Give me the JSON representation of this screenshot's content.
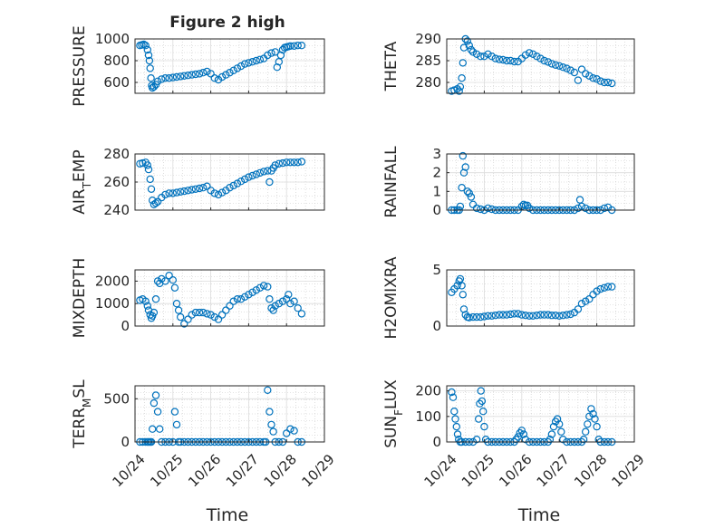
{
  "title": "Figure 2 high",
  "x_tick_labels": [
    "10/24",
    "10/25",
    "10/26",
    "10/27",
    "10/28",
    "10/29"
  ],
  "xlabel": "Time",
  "series_color": "#0072BD",
  "chart_data": [
    {
      "type": "scatter",
      "ylabel": "PRESSURE",
      "xlim": [
        0,
        5
      ],
      "ylim": [
        500,
        1000
      ],
      "yticks": [
        600,
        800,
        1000
      ],
      "x": [
        0.13,
        0.18,
        0.23,
        0.28,
        0.33,
        0.36,
        0.38,
        0.4,
        0.42,
        0.44,
        0.46,
        0.5,
        0.55,
        0.6,
        0.7,
        0.8,
        0.9,
        1.0,
        1.1,
        1.2,
        1.3,
        1.4,
        1.5,
        1.6,
        1.7,
        1.8,
        1.9,
        2.0,
        2.1,
        2.2,
        2.3,
        2.4,
        2.5,
        2.6,
        2.7,
        2.8,
        2.9,
        3.0,
        3.1,
        3.2,
        3.3,
        3.4,
        3.5,
        3.6,
        3.7,
        3.75,
        3.8,
        3.85,
        3.9,
        3.95,
        4.0,
        4.05,
        4.1,
        4.2,
        4.3,
        4.4
      ],
      "y": [
        940,
        945,
        950,
        940,
        900,
        850,
        800,
        730,
        640,
        570,
        550,
        560,
        580,
        610,
        630,
        640,
        640,
        645,
        650,
        655,
        660,
        665,
        670,
        675,
        680,
        690,
        700,
        680,
        640,
        625,
        650,
        670,
        690,
        710,
        730,
        750,
        770,
        780,
        790,
        800,
        810,
        820,
        850,
        870,
        880,
        740,
        790,
        850,
        900,
        920,
        925,
        930,
        935,
        935,
        940,
        940
      ]
    },
    {
      "type": "scatter",
      "ylabel": "THETA",
      "xlim": [
        0,
        5
      ],
      "ylim": [
        277.5,
        290
      ],
      "yticks": [
        280,
        285,
        290
      ],
      "x": [
        0.13,
        0.2,
        0.28,
        0.33,
        0.36,
        0.4,
        0.43,
        0.46,
        0.5,
        0.55,
        0.6,
        0.65,
        0.7,
        0.8,
        0.9,
        1.0,
        1.1,
        1.2,
        1.3,
        1.4,
        1.5,
        1.6,
        1.7,
        1.8,
        1.9,
        2.0,
        2.1,
        2.2,
        2.3,
        2.4,
        2.5,
        2.6,
        2.7,
        2.8,
        2.9,
        3.0,
        3.1,
        3.2,
        3.3,
        3.4,
        3.5,
        3.6,
        3.7,
        3.8,
        3.9,
        4.0,
        4.1,
        4.2,
        4.3,
        4.4
      ],
      "y": [
        278.0,
        278.2,
        278.5,
        278.0,
        279.0,
        281.0,
        284.5,
        288.0,
        290.0,
        289.5,
        288.5,
        287.5,
        287.0,
        286.5,
        286.0,
        286.0,
        286.5,
        286.0,
        285.5,
        285.3,
        285.2,
        285.0,
        285.0,
        284.8,
        284.8,
        285.5,
        286.3,
        286.8,
        286.5,
        286.0,
        285.5,
        285.0,
        284.7,
        284.3,
        284.0,
        283.8,
        283.5,
        283.2,
        282.8,
        282.3,
        280.5,
        283.0,
        282.0,
        281.5,
        281.0,
        280.8,
        280.3,
        280.0,
        280.0,
        279.8
      ]
    },
    {
      "type": "scatter",
      "ylabel": "AIR_TEMP",
      "xlim": [
        0,
        5
      ],
      "ylim": [
        240,
        280
      ],
      "yticks": [
        240,
        260,
        280
      ],
      "x": [
        0.13,
        0.2,
        0.28,
        0.33,
        0.36,
        0.4,
        0.43,
        0.46,
        0.5,
        0.55,
        0.6,
        0.7,
        0.8,
        0.9,
        1.0,
        1.1,
        1.2,
        1.3,
        1.4,
        1.5,
        1.6,
        1.7,
        1.8,
        1.9,
        2.0,
        2.1,
        2.2,
        2.3,
        2.4,
        2.5,
        2.6,
        2.7,
        2.8,
        2.9,
        3.0,
        3.1,
        3.2,
        3.3,
        3.4,
        3.5,
        3.55,
        3.6,
        3.65,
        3.7,
        3.8,
        3.9,
        4.0,
        4.1,
        4.2,
        4.3,
        4.4
      ],
      "y": [
        273,
        273.5,
        274,
        272,
        269,
        262,
        255,
        247,
        244,
        245,
        246,
        249,
        251,
        252,
        252,
        252.5,
        253,
        253.5,
        254,
        254.5,
        255,
        255.5,
        256,
        257,
        254,
        252,
        251,
        252.5,
        254,
        256,
        257.5,
        259,
        260.5,
        262,
        263.5,
        264.5,
        265.5,
        266.5,
        267.5,
        268,
        260,
        268,
        270,
        272,
        273,
        273.5,
        274,
        274,
        274,
        274,
        274.5
      ]
    },
    {
      "type": "scatter",
      "ylabel": "RAINFALL",
      "xlim": [
        0,
        5
      ],
      "ylim": [
        0,
        3
      ],
      "yticks": [
        0,
        1,
        2,
        3
      ],
      "x": [
        0.13,
        0.2,
        0.28,
        0.33,
        0.36,
        0.4,
        0.43,
        0.46,
        0.5,
        0.55,
        0.6,
        0.65,
        0.7,
        0.8,
        0.9,
        1.0,
        1.1,
        1.2,
        1.3,
        1.4,
        1.5,
        1.6,
        1.7,
        1.8,
        1.9,
        2.0,
        2.05,
        2.1,
        2.15,
        2.2,
        2.3,
        2.4,
        2.5,
        2.6,
        2.7,
        2.8,
        2.9,
        3.0,
        3.1,
        3.2,
        3.3,
        3.4,
        3.5,
        3.55,
        3.6,
        3.7,
        3.8,
        3.9,
        4.0,
        4.1,
        4.2,
        4.3,
        4.4
      ],
      "y": [
        0,
        0,
        0,
        0,
        0.2,
        1.2,
        2.9,
        2.0,
        2.3,
        1.0,
        0.9,
        0.7,
        0.3,
        0.1,
        0.05,
        0,
        0.1,
        0.05,
        0,
        0,
        0,
        0,
        0,
        0,
        0,
        0.2,
        0.3,
        0.25,
        0.25,
        0.1,
        0,
        0,
        0,
        0,
        0,
        0,
        0,
        0,
        0,
        0,
        0,
        0,
        0.1,
        0.55,
        0.2,
        0.1,
        0,
        0,
        0,
        0,
        0.1,
        0.15,
        0
      ]
    },
    {
      "type": "scatter",
      "ylabel": "MIXDEPTH",
      "xlim": [
        0,
        5
      ],
      "ylim": [
        0,
        2500
      ],
      "yticks": [
        0,
        1000,
        2000
      ],
      "x": [
        0.13,
        0.2,
        0.28,
        0.33,
        0.36,
        0.4,
        0.43,
        0.46,
        0.5,
        0.55,
        0.6,
        0.65,
        0.7,
        0.8,
        0.9,
        1.0,
        1.05,
        1.1,
        1.15,
        1.2,
        1.3,
        1.4,
        1.5,
        1.6,
        1.7,
        1.8,
        1.9,
        2.0,
        2.1,
        2.2,
        2.3,
        2.4,
        2.5,
        2.6,
        2.7,
        2.8,
        2.9,
        3.0,
        3.1,
        3.2,
        3.3,
        3.4,
        3.5,
        3.55,
        3.6,
        3.65,
        3.7,
        3.8,
        3.9,
        4.0,
        4.05,
        4.1,
        4.2,
        4.3,
        4.4
      ],
      "y": [
        1150,
        1200,
        1100,
        900,
        700,
        500,
        350,
        450,
        600,
        1200,
        2000,
        1900,
        2100,
        2000,
        2250,
        2050,
        1700,
        1000,
        700,
        400,
        100,
        300,
        500,
        600,
        600,
        600,
        550,
        500,
        400,
        300,
        500,
        700,
        900,
        1100,
        1200,
        1200,
        1300,
        1400,
        1500,
        1600,
        1700,
        1800,
        1750,
        1200,
        800,
        700,
        900,
        1000,
        1100,
        1200,
        1400,
        1000,
        1100,
        800,
        550
      ]
    },
    {
      "type": "scatter",
      "ylabel": "H2OMIXRA",
      "xlim": [
        0,
        5
      ],
      "ylim": [
        0,
        5
      ],
      "yticks": [
        0,
        5
      ],
      "x": [
        0.13,
        0.2,
        0.28,
        0.33,
        0.36,
        0.4,
        0.43,
        0.46,
        0.5,
        0.55,
        0.6,
        0.7,
        0.8,
        0.9,
        1.0,
        1.1,
        1.2,
        1.3,
        1.4,
        1.5,
        1.6,
        1.7,
        1.8,
        1.9,
        2.0,
        2.1,
        2.2,
        2.3,
        2.4,
        2.5,
        2.6,
        2.7,
        2.8,
        2.9,
        3.0,
        3.1,
        3.2,
        3.3,
        3.4,
        3.5,
        3.6,
        3.7,
        3.8,
        3.9,
        4.0,
        4.1,
        4.2,
        4.3,
        4.4
      ],
      "y": [
        3.0,
        3.3,
        3.6,
        4.0,
        4.2,
        3.6,
        2.8,
        1.5,
        1.0,
        0.8,
        0.75,
        0.8,
        0.8,
        0.8,
        0.85,
        0.9,
        0.9,
        0.95,
        1.0,
        1.0,
        1.0,
        1.05,
        1.1,
        1.1,
        1.0,
        0.95,
        0.9,
        0.9,
        0.95,
        1.0,
        1.0,
        1.0,
        0.95,
        0.95,
        0.9,
        0.95,
        1.0,
        1.05,
        1.2,
        1.5,
        2.0,
        2.2,
        2.4,
        2.8,
        3.1,
        3.3,
        3.4,
        3.5,
        3.5
      ]
    },
    {
      "type": "scatter",
      "ylabel": "TERR_MSL",
      "xlim": [
        0,
        5
      ],
      "ylim": [
        0,
        650
      ],
      "yticks": [
        0,
        500
      ],
      "x": [
        0.13,
        0.2,
        0.28,
        0.33,
        0.36,
        0.4,
        0.43,
        0.46,
        0.5,
        0.55,
        0.6,
        0.65,
        0.7,
        0.8,
        0.9,
        1.0,
        1.05,
        1.1,
        1.15,
        1.2,
        1.3,
        1.4,
        1.5,
        1.6,
        1.7,
        1.8,
        1.9,
        2.0,
        2.1,
        2.2,
        2.3,
        2.4,
        2.5,
        2.6,
        2.7,
        2.8,
        2.9,
        3.0,
        3.1,
        3.2,
        3.3,
        3.4,
        3.45,
        3.5,
        3.55,
        3.6,
        3.65,
        3.7,
        3.8,
        3.9,
        4.0,
        4.1,
        4.2,
        4.3,
        4.4
      ],
      "y": [
        0,
        0,
        0,
        0,
        0,
        0,
        0,
        150,
        450,
        540,
        350,
        150,
        0,
        0,
        0,
        0,
        350,
        200,
        0,
        0,
        0,
        0,
        0,
        0,
        0,
        0,
        0,
        0,
        0,
        0,
        0,
        0,
        0,
        0,
        0,
        0,
        0,
        0,
        0,
        0,
        0,
        0,
        0,
        600,
        350,
        200,
        120,
        0,
        0,
        0,
        100,
        150,
        130,
        0,
        0
      ]
    },
    {
      "type": "scatter",
      "ylabel": "SUN_FLUX",
      "xlim": [
        0,
        5
      ],
      "ylim": [
        0,
        220
      ],
      "yticks": [
        0,
        100,
        200
      ],
      "x": [
        0.13,
        0.17,
        0.2,
        0.23,
        0.26,
        0.29,
        0.32,
        0.36,
        0.4,
        0.5,
        0.6,
        0.7,
        0.8,
        0.85,
        0.88,
        0.91,
        0.94,
        0.97,
        1.0,
        1.04,
        1.1,
        1.2,
        1.3,
        1.4,
        1.5,
        1.6,
        1.7,
        1.8,
        1.85,
        1.9,
        1.95,
        2.0,
        2.05,
        2.1,
        2.2,
        2.3,
        2.4,
        2.5,
        2.6,
        2.7,
        2.75,
        2.8,
        2.85,
        2.9,
        2.95,
        3.0,
        3.05,
        3.1,
        3.2,
        3.3,
        3.4,
        3.5,
        3.6,
        3.65,
        3.7,
        3.75,
        3.8,
        3.85,
        3.9,
        3.95,
        4.0,
        4.05,
        4.1,
        4.2,
        4.3,
        4.4
      ],
      "y": [
        195,
        175,
        120,
        90,
        60,
        30,
        10,
        0,
        0,
        0,
        0,
        0,
        10,
        90,
        150,
        200,
        160,
        120,
        60,
        10,
        0,
        0,
        0,
        0,
        0,
        0,
        0,
        0,
        10,
        20,
        35,
        45,
        30,
        10,
        0,
        0,
        0,
        0,
        0,
        0,
        10,
        30,
        60,
        80,
        90,
        70,
        40,
        10,
        0,
        0,
        0,
        0,
        0,
        10,
        40,
        70,
        100,
        130,
        110,
        90,
        60,
        10,
        0,
        0,
        0,
        0
      ]
    }
  ]
}
